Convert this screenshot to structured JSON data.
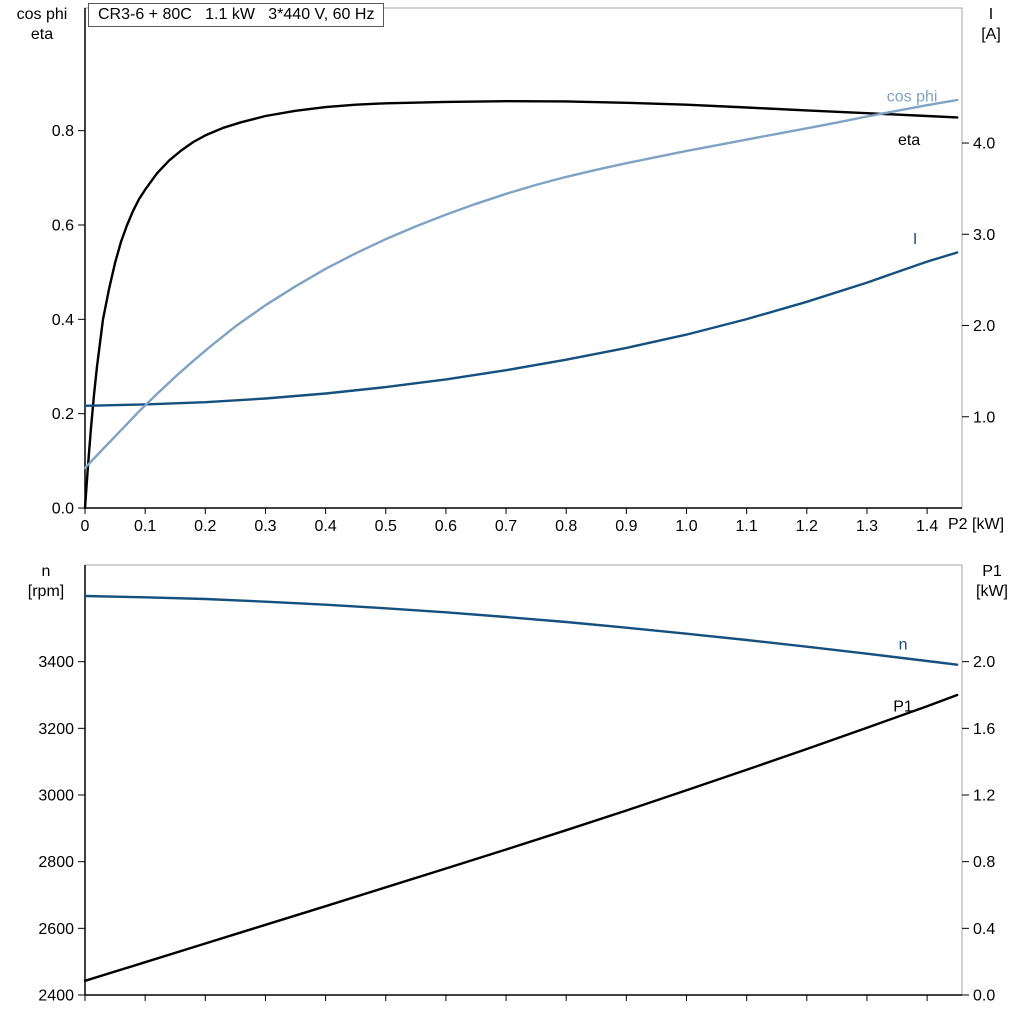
{
  "header": {
    "title": "CR3-6 + 80C   1.1 kW   3*440 V, 60 Hz"
  },
  "colors": {
    "black": "#000000",
    "dark_blue": "#15507e",
    "light_blue": "#7fa3c4",
    "frame": "#a6a6a6",
    "background": "#ffffff"
  },
  "chart_data": [
    {
      "id": "upper",
      "type": "line",
      "x_axis": {
        "label": "P2 [kW]",
        "range": [
          0,
          1.458
        ],
        "tick_values": [
          0,
          0.1,
          0.2,
          0.3,
          0.4,
          0.5,
          0.6,
          0.7,
          0.8,
          0.9,
          1.0,
          1.1,
          1.2,
          1.3,
          1.4
        ],
        "tick_labels": [
          "0",
          "0.1",
          "0.2",
          "0.3",
          "0.4",
          "0.5",
          "0.6",
          "0.7",
          "0.8",
          "0.9",
          "1.0",
          "1.1",
          "1.2",
          "1.3",
          "1.4"
        ]
      },
      "y_left": {
        "title_lines": [
          "cos phi",
          "eta"
        ],
        "range": [
          0,
          1.06
        ],
        "tick_values": [
          0,
          0.2,
          0.4,
          0.6,
          0.8
        ],
        "tick_labels": [
          "0.0",
          "0.2",
          "0.4",
          "0.6",
          "0.8"
        ]
      },
      "y_right": {
        "title_lines": [
          "I",
          "[A]"
        ],
        "range": [
          0,
          5.48
        ],
        "tick_values": [
          1,
          2,
          3,
          4
        ],
        "tick_labels": [
          "1.0",
          "2.0",
          "3.0",
          "4.0"
        ]
      },
      "series": [
        {
          "id": "eta",
          "name": "eta",
          "axis": "left",
          "color": "#000000",
          "label_at": [
            1.37,
            0.78
          ],
          "points": [
            [
              0,
              0
            ],
            [
              0.005,
              0.09
            ],
            [
              0.01,
              0.17
            ],
            [
              0.015,
              0.24
            ],
            [
              0.02,
              0.3
            ],
            [
              0.03,
              0.4
            ],
            [
              0.04,
              0.465
            ],
            [
              0.05,
              0.52
            ],
            [
              0.06,
              0.565
            ],
            [
              0.07,
              0.6
            ],
            [
              0.08,
              0.63
            ],
            [
              0.09,
              0.655
            ],
            [
              0.1,
              0.675
            ],
            [
              0.12,
              0.71
            ],
            [
              0.14,
              0.737
            ],
            [
              0.16,
              0.758
            ],
            [
              0.18,
              0.776
            ],
            [
              0.2,
              0.79
            ],
            [
              0.23,
              0.806
            ],
            [
              0.26,
              0.818
            ],
            [
              0.3,
              0.831
            ],
            [
              0.35,
              0.842
            ],
            [
              0.4,
              0.85
            ],
            [
              0.45,
              0.855
            ],
            [
              0.5,
              0.858
            ],
            [
              0.6,
              0.861
            ],
            [
              0.7,
              0.8625
            ],
            [
              0.8,
              0.862
            ],
            [
              0.9,
              0.859
            ],
            [
              1.0,
              0.855
            ],
            [
              1.1,
              0.849
            ],
            [
              1.2,
              0.843
            ],
            [
              1.3,
              0.837
            ],
            [
              1.4,
              0.831
            ],
            [
              1.45,
              0.828
            ]
          ]
        },
        {
          "id": "current",
          "name": "I",
          "axis": "right",
          "color": "#15507e",
          "label_at": [
            1.38,
            2.95
          ],
          "points": [
            [
              0,
              1.12
            ],
            [
              0.1,
              1.135
            ],
            [
              0.2,
              1.16
            ],
            [
              0.3,
              1.2
            ],
            [
              0.4,
              1.255
            ],
            [
              0.5,
              1.325
            ],
            [
              0.6,
              1.41
            ],
            [
              0.7,
              1.51
            ],
            [
              0.8,
              1.625
            ],
            [
              0.9,
              1.755
            ],
            [
              1.0,
              1.9
            ],
            [
              1.1,
              2.07
            ],
            [
              1.2,
              2.26
            ],
            [
              1.3,
              2.47
            ],
            [
              1.4,
              2.7
            ],
            [
              1.45,
              2.8
            ]
          ]
        },
        {
          "id": "cos-phi",
          "name": "cos phi",
          "axis": "left",
          "color": "#7fa3c4",
          "label_at": [
            1.375,
            0.872
          ],
          "points": [
            [
              0,
              0.085
            ],
            [
              0.03,
              0.125
            ],
            [
              0.06,
              0.165
            ],
            [
              0.09,
              0.205
            ],
            [
              0.12,
              0.242
            ],
            [
              0.15,
              0.278
            ],
            [
              0.18,
              0.312
            ],
            [
              0.21,
              0.344
            ],
            [
              0.25,
              0.385
            ],
            [
              0.3,
              0.43
            ],
            [
              0.35,
              0.47
            ],
            [
              0.4,
              0.507
            ],
            [
              0.45,
              0.54
            ],
            [
              0.5,
              0.57
            ],
            [
              0.55,
              0.597
            ],
            [
              0.6,
              0.622
            ],
            [
              0.65,
              0.645
            ],
            [
              0.7,
              0.666
            ],
            [
              0.75,
              0.685
            ],
            [
              0.8,
              0.702
            ],
            [
              0.85,
              0.717
            ],
            [
              0.9,
              0.731
            ],
            [
              0.95,
              0.744
            ],
            [
              1.0,
              0.757
            ],
            [
              1.05,
              0.769
            ],
            [
              1.1,
              0.781
            ],
            [
              1.15,
              0.793
            ],
            [
              1.2,
              0.805
            ],
            [
              1.25,
              0.817
            ],
            [
              1.3,
              0.83
            ],
            [
              1.35,
              0.842
            ],
            [
              1.4,
              0.854
            ],
            [
              1.45,
              0.865
            ]
          ]
        }
      ]
    },
    {
      "id": "lower",
      "type": "line",
      "x_axis": {
        "label": "",
        "range": [
          0,
          1.458
        ],
        "tick_values": [
          0,
          0.1,
          0.2,
          0.3,
          0.4,
          0.5,
          0.6,
          0.7,
          0.8,
          0.9,
          1.0,
          1.1,
          1.2,
          1.3,
          1.4
        ],
        "tick_labels": []
      },
      "y_left": {
        "title_lines": [
          "n",
          "[rpm]"
        ],
        "range": [
          2400,
          3690
        ],
        "tick_values": [
          2400,
          2600,
          2800,
          3000,
          3200,
          3400
        ],
        "tick_labels": [
          "2400",
          "2600",
          "2800",
          "3000",
          "3200",
          "3400"
        ]
      },
      "y_right": {
        "title_lines": [
          "P1",
          "[kW]"
        ],
        "range": [
          0,
          2.58
        ],
        "tick_values": [
          0,
          0.4,
          0.8,
          1.2,
          1.6,
          2.0
        ],
        "tick_labels": [
          "0.0",
          "0.4",
          "0.8",
          "1.2",
          "1.6",
          "2.0"
        ]
      },
      "series": [
        {
          "id": "speed",
          "name": "n",
          "axis": "left",
          "color": "#15507e",
          "label_at": [
            1.36,
            3452
          ],
          "points": [
            [
              0,
              3597
            ],
            [
              0.1,
              3593
            ],
            [
              0.2,
              3588
            ],
            [
              0.3,
              3580
            ],
            [
              0.4,
              3571
            ],
            [
              0.5,
              3560
            ],
            [
              0.6,
              3548
            ],
            [
              0.7,
              3534
            ],
            [
              0.8,
              3519
            ],
            [
              0.9,
              3502
            ],
            [
              1.0,
              3484
            ],
            [
              1.1,
              3465
            ],
            [
              1.2,
              3445
            ],
            [
              1.3,
              3424
            ],
            [
              1.4,
              3402
            ],
            [
              1.45,
              3391
            ]
          ]
        },
        {
          "id": "input-power",
          "name": "P1",
          "axis": "right",
          "color": "#000000",
          "label_at": [
            1.36,
            1.73
          ],
          "points": [
            [
              0,
              0.085
            ],
            [
              0.1,
              0.197
            ],
            [
              0.2,
              0.309
            ],
            [
              0.3,
              0.421
            ],
            [
              0.4,
              0.533
            ],
            [
              0.5,
              0.646
            ],
            [
              0.6,
              0.759
            ],
            [
              0.7,
              0.873
            ],
            [
              0.8,
              0.989
            ],
            [
              0.9,
              1.107
            ],
            [
              1.0,
              1.228
            ],
            [
              1.1,
              1.352
            ],
            [
              1.2,
              1.476
            ],
            [
              1.3,
              1.603
            ],
            [
              1.4,
              1.733
            ],
            [
              1.45,
              1.8
            ]
          ]
        }
      ]
    }
  ]
}
